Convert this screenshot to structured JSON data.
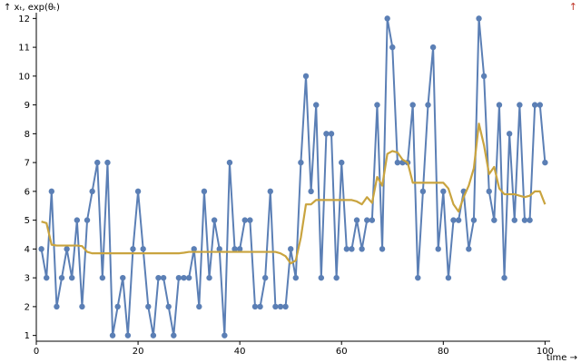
{
  "chart_data": {
    "type": "line",
    "ylabel": "↑ xₜ, exp(θₜ)",
    "xlabel": "time →",
    "corner_arrow": "↑",
    "xlim": [
      0,
      101
    ],
    "ylim": [
      0.8,
      12.2
    ],
    "x_ticks": [
      0,
      20,
      40,
      60,
      80,
      100
    ],
    "y_ticks": [
      1,
      2,
      3,
      4,
      5,
      6,
      7,
      8,
      9,
      10,
      11,
      12
    ],
    "grid": false,
    "series": [
      {
        "role": "observations",
        "color": "#5b7fb5",
        "markers": true,
        "x": [
          1,
          2,
          3,
          4,
          5,
          6,
          7,
          8,
          9,
          10,
          11,
          12,
          13,
          14,
          15,
          16,
          17,
          18,
          19,
          20,
          21,
          22,
          23,
          24,
          25,
          26,
          27,
          28,
          29,
          30,
          31,
          32,
          33,
          34,
          35,
          36,
          37,
          38,
          39,
          40,
          41,
          42,
          43,
          44,
          45,
          46,
          47,
          48,
          49,
          50,
          51,
          52,
          53,
          54,
          55,
          56,
          57,
          58,
          59,
          60,
          61,
          62,
          63,
          64,
          65,
          66,
          67,
          68,
          69,
          70,
          71,
          72,
          73,
          74,
          75,
          76,
          77,
          78,
          79,
          80,
          81,
          82,
          83,
          84,
          85,
          86,
          87,
          88,
          89,
          90,
          91,
          92,
          93,
          94,
          95,
          96,
          97,
          98,
          99,
          100
        ],
        "y": [
          4,
          3,
          6,
          2,
          3,
          4,
          3,
          5,
          2,
          5,
          6,
          7,
          3,
          7,
          1,
          2,
          3,
          1,
          4,
          6,
          4,
          2,
          1,
          3,
          3,
          2,
          1,
          3,
          3,
          3,
          4,
          2,
          6,
          3,
          5,
          4,
          1,
          7,
          4,
          4,
          5,
          5,
          2,
          2,
          3,
          6,
          2,
          2,
          2,
          4,
          3,
          7,
          10,
          6,
          9,
          3,
          8,
          8,
          3,
          7,
          4,
          4,
          5,
          4,
          5,
          5,
          9,
          4,
          12,
          11,
          7,
          7,
          7,
          9,
          3,
          6,
          9,
          11,
          4,
          6,
          3,
          5,
          5,
          6,
          4,
          5,
          12,
          10,
          6,
          5,
          9,
          3,
          8,
          5,
          9,
          5,
          5,
          9,
          9,
          7
        ]
      },
      {
        "role": "smoothed",
        "color": "#c9a43f",
        "markers": false,
        "x": [
          1,
          2,
          3,
          4,
          5,
          6,
          7,
          8,
          9,
          10,
          11,
          12,
          13,
          14,
          15,
          16,
          17,
          18,
          19,
          20,
          21,
          22,
          23,
          24,
          25,
          26,
          27,
          28,
          29,
          30,
          31,
          32,
          33,
          34,
          35,
          36,
          37,
          38,
          39,
          40,
          41,
          42,
          43,
          44,
          45,
          46,
          47,
          48,
          49,
          50,
          51,
          52,
          53,
          54,
          55,
          56,
          57,
          58,
          59,
          60,
          61,
          62,
          63,
          64,
          65,
          66,
          67,
          68,
          69,
          70,
          71,
          72,
          73,
          74,
          75,
          76,
          77,
          78,
          79,
          80,
          81,
          82,
          83,
          84,
          85,
          86,
          87,
          88,
          89,
          90,
          91,
          92,
          93,
          94,
          95,
          96,
          97,
          98,
          99,
          100
        ],
        "y": [
          4.95,
          4.9,
          4.15,
          4.12,
          4.12,
          4.12,
          4.12,
          4.12,
          4.1,
          3.9,
          3.85,
          3.85,
          3.85,
          3.85,
          3.85,
          3.85,
          3.85,
          3.85,
          3.85,
          3.85,
          3.85,
          3.85,
          3.85,
          3.85,
          3.85,
          3.85,
          3.85,
          3.85,
          3.87,
          3.9,
          3.9,
          3.9,
          3.9,
          3.9,
          3.9,
          3.9,
          3.9,
          3.9,
          3.9,
          3.9,
          3.9,
          3.9,
          3.9,
          3.9,
          3.9,
          3.9,
          3.9,
          3.85,
          3.75,
          3.5,
          3.6,
          4.4,
          5.55,
          5.55,
          5.7,
          5.7,
          5.7,
          5.7,
          5.7,
          5.7,
          5.7,
          5.7,
          5.65,
          5.55,
          5.8,
          5.6,
          6.5,
          6.2,
          7.3,
          7.4,
          7.35,
          7.1,
          7.0,
          6.3,
          6.3,
          6.3,
          6.3,
          6.3,
          6.3,
          6.3,
          6.1,
          5.55,
          5.3,
          5.8,
          6.2,
          6.8,
          8.35,
          7.6,
          6.6,
          6.85,
          6.1,
          5.9,
          5.9,
          5.9,
          5.85,
          5.8,
          5.85,
          6.0,
          6.0,
          5.55
        ]
      }
    ]
  }
}
